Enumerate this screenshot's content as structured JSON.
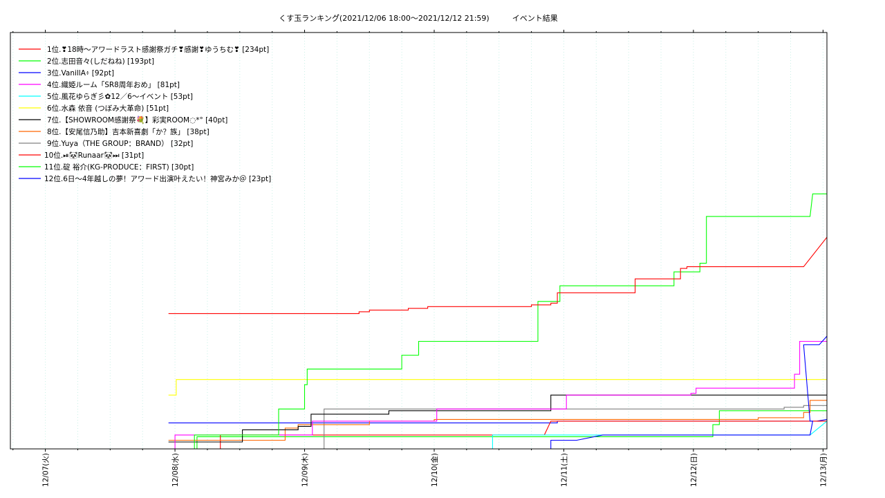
{
  "chart_data": {
    "type": "line",
    "title": "くす玉ランキング゙(2021/12/06 18:00〜2021/12/12 21:59)　　　イベント結果",
    "xlabel": "",
    "ylabel": "",
    "grid": true,
    "legend": "top-left",
    "x_ticks": [
      "12/07(火)",
      "12/08(水)",
      "12/09(木)",
      "12/10(金)",
      "12/11(土)",
      "12/12(日)",
      "12/13(月)"
    ],
    "xlim": [
      -0.27,
      6.03
    ],
    "ylim": [
      0,
      240
    ],
    "series": [
      {
        "name": "1位.❣18時〜アワードラスト感謝祭ガチ❣感謝❣ゆうちむ❣ [234pt]",
        "color": "#ff0000",
        "points": [
          [
            0.95,
            78
          ],
          [
            2.42,
            78
          ],
          [
            2.42,
            79
          ],
          [
            2.5,
            79
          ],
          [
            2.5,
            80
          ],
          [
            2.8,
            80
          ],
          [
            2.8,
            81
          ],
          [
            2.95,
            81
          ],
          [
            2.95,
            82
          ],
          [
            3.75,
            82
          ],
          [
            3.75,
            83
          ],
          [
            3.9,
            83
          ],
          [
            3.9,
            84
          ],
          [
            3.95,
            84
          ],
          [
            3.95,
            90
          ],
          [
            4.55,
            90
          ],
          [
            4.55,
            98
          ],
          [
            4.9,
            98
          ],
          [
            4.9,
            104
          ],
          [
            4.95,
            104
          ],
          [
            4.95,
            105
          ],
          [
            5.85,
            105
          ],
          [
            6.03,
            122
          ]
        ]
      },
      {
        "name": "2位.志田音々(しだねね) [193pt]",
        "color": "#00ff00",
        "points": [
          [
            1.15,
            0
          ],
          [
            1.15,
            8
          ],
          [
            1.8,
            8
          ],
          [
            1.8,
            23
          ],
          [
            2.0,
            23
          ],
          [
            2.0,
            37
          ],
          [
            2.02,
            37
          ],
          [
            2.02,
            46
          ],
          [
            2.75,
            46
          ],
          [
            2.75,
            54
          ],
          [
            2.88,
            54
          ],
          [
            2.88,
            62
          ],
          [
            3.8,
            62
          ],
          [
            3.8,
            85
          ],
          [
            3.97,
            85
          ],
          [
            3.97,
            94
          ],
          [
            4.85,
            94
          ],
          [
            4.85,
            102
          ],
          [
            5.05,
            102
          ],
          [
            5.05,
            107
          ],
          [
            5.1,
            107
          ],
          [
            5.1,
            134
          ],
          [
            5.9,
            134
          ],
          [
            5.92,
            147
          ],
          [
            6.03,
            147
          ]
        ]
      },
      {
        "name": "3位.VanillA፥ [92pt]",
        "color": "#0000ff",
        "points": [
          [
            3.9,
            0
          ],
          [
            3.9,
            5
          ],
          [
            4.1,
            5
          ],
          [
            4.3,
            8
          ],
          [
            5.9,
            8
          ],
          [
            5.92,
            16
          ],
          [
            5.9,
            16
          ],
          [
            5.85,
            60
          ],
          [
            5.97,
            60
          ],
          [
            6.03,
            65
          ]
        ]
      },
      {
        "name": "4位.織姫ルーム「SR8周年おめ」 [81pt]",
        "color": "#ff00ff",
        "points": [
          [
            1.0,
            0
          ],
          [
            1.0,
            8
          ],
          [
            2.06,
            8
          ],
          [
            2.06,
            16
          ],
          [
            3.02,
            16
          ],
          [
            3.02,
            23
          ],
          [
            4.02,
            23
          ],
          [
            4.02,
            31
          ],
          [
            4.98,
            31
          ],
          [
            4.98,
            32
          ],
          [
            5.02,
            32
          ],
          [
            5.02,
            35
          ],
          [
            5.78,
            35
          ],
          [
            5.78,
            43
          ],
          [
            5.82,
            43
          ],
          [
            5.82,
            62
          ],
          [
            6.03,
            62
          ]
        ]
      },
      {
        "name": "5位.風花ゆらぎ彡✿12／6〜イベント [53pt]",
        "color": "#00ffff",
        "points": [
          [
            3.45,
            0
          ],
          [
            3.45,
            8
          ],
          [
            5.9,
            8
          ],
          [
            6.03,
            16
          ]
        ]
      },
      {
        "name": "6位.水森 依音 (つぼみ大革命) [51pt]",
        "color": "#ffff00",
        "points": [
          [
            0.95,
            31
          ],
          [
            1.01,
            31
          ],
          [
            1.01,
            40
          ],
          [
            6.03,
            40
          ]
        ]
      },
      {
        "name": "7位.【SHOWROOM感謝祭💐】彩実ROOM◌*° [40pt]",
        "color": "#000000",
        "points": [
          [
            0.95,
            4
          ],
          [
            1.52,
            4
          ],
          [
            1.52,
            11
          ],
          [
            1.95,
            11
          ],
          [
            1.95,
            13
          ],
          [
            2.05,
            13
          ],
          [
            2.05,
            20
          ],
          [
            2.65,
            20
          ],
          [
            2.65,
            22
          ],
          [
            3.9,
            22
          ],
          [
            3.9,
            31
          ],
          [
            6.03,
            31
          ]
        ]
      },
      {
        "name": "8位.【安尾信乃助】吉本新喜劇「か？族」 [38pt]",
        "color": "#ff6600",
        "points": [
          [
            0.95,
            5
          ],
          [
            1.85,
            5
          ],
          [
            1.85,
            12
          ],
          [
            1.95,
            12
          ],
          [
            1.95,
            14
          ],
          [
            2.5,
            14
          ],
          [
            2.5,
            16
          ],
          [
            3.0,
            16
          ],
          [
            3.0,
            17
          ],
          [
            5.5,
            17
          ],
          [
            5.5,
            18
          ],
          [
            5.85,
            18
          ],
          [
            5.85,
            21
          ],
          [
            5.9,
            21
          ],
          [
            5.9,
            28
          ],
          [
            6.03,
            28
          ]
        ]
      },
      {
        "name": "9位.Yuya（THE GROUP：BRAND） [32pt]",
        "color": "#808080",
        "points": [
          [
            2.15,
            0
          ],
          [
            2.15,
            23
          ],
          [
            5.7,
            23
          ],
          [
            5.7,
            24
          ],
          [
            5.85,
            24
          ],
          [
            5.85,
            25
          ],
          [
            6.03,
            25
          ]
        ]
      },
      {
        "name": "10位.⏯🐼Runaar🐼⏭ [31pt]",
        "color": "#ff0000",
        "points": [
          [
            1.35,
            0
          ],
          [
            1.35,
            8
          ],
          [
            3.85,
            8
          ],
          [
            3.9,
            16
          ],
          [
            6.03,
            16
          ]
        ]
      },
      {
        "name": "11位.碇 裕介(KG-PRODUCE：FIRST) [30pt]",
        "color": "#00ff00",
        "points": [
          [
            1.17,
            0
          ],
          [
            1.17,
            7
          ],
          [
            5.15,
            7
          ],
          [
            5.15,
            14
          ],
          [
            5.2,
            14
          ],
          [
            5.2,
            22
          ],
          [
            6.03,
            22
          ]
        ]
      },
      {
        "name": "12位.6日〜4年越しの夢！アワード出演叶えたい！神宮みか＠ [23pt]",
        "color": "#0000ff",
        "points": [
          [
            0.95,
            15
          ],
          [
            3.95,
            15
          ],
          [
            3.95,
            16
          ],
          [
            5.95,
            16
          ],
          [
            6.03,
            17
          ]
        ]
      }
    ]
  }
}
